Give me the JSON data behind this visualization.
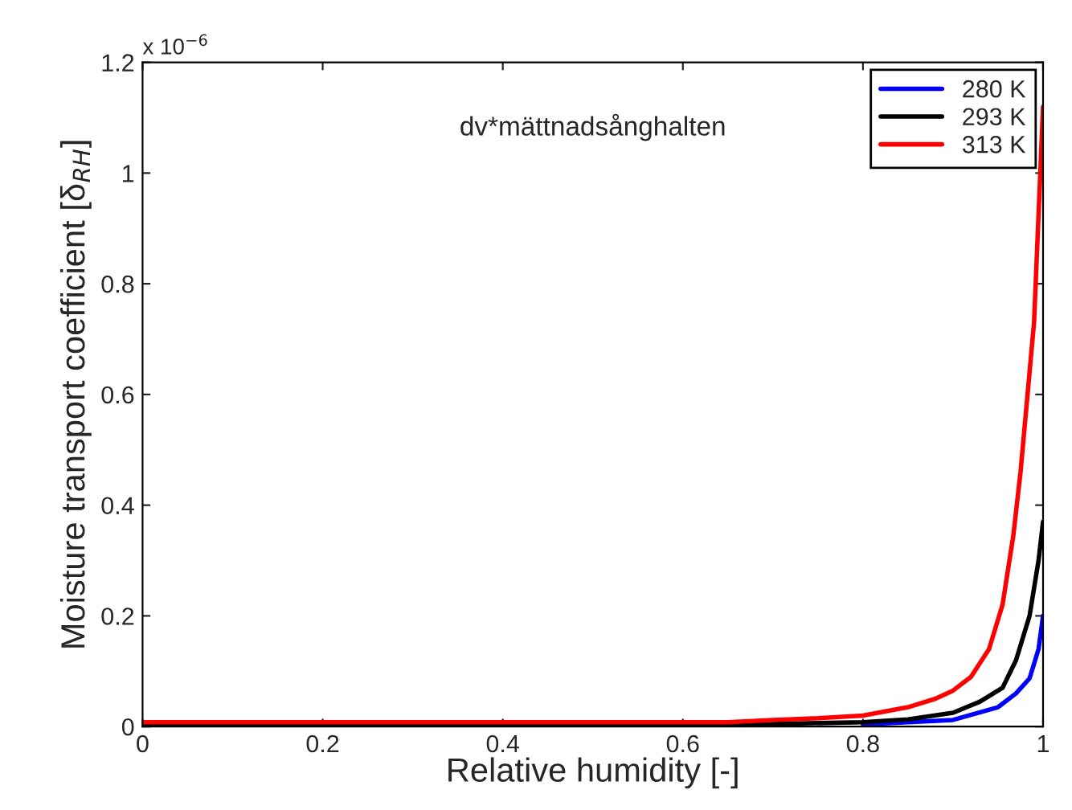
{
  "chart_data": {
    "type": "line",
    "xlabel": "Relative humidity [-]",
    "ylabel": "Moisture transport coefficient [δ$_{RH}$]",
    "annotations": [
      "dv*mättnadsånghalten",
      "x 10$^{−6}$"
    ],
    "xlim": [
      0,
      1
    ],
    "xticks": [
      0,
      0.2,
      0.4,
      0.6,
      0.8,
      1
    ],
    "ylim": [
      0,
      1.2
    ],
    "yticks": [
      0,
      0.2,
      0.4,
      0.6,
      0.8,
      1,
      1.2
    ],
    "grid": false,
    "legend": "top right",
    "line_style": "solid",
    "marker": "none",
    "series": [
      {
        "name": "280 K",
        "color": "#0000ff",
        "x": [
          0.8,
          0.9,
          0.95,
          0.97,
          0.985,
          0.995,
          1.0
        ],
        "values": [
          0.004,
          0.012,
          0.035,
          0.06,
          0.087,
          0.14,
          0.2
        ]
      },
      {
        "name": "293 K",
        "color": "#000000",
        "x": [
          0,
          0.65,
          0.8,
          0.85,
          0.9,
          0.93,
          0.955,
          0.97,
          0.985,
          0.995,
          1.0
        ],
        "values": [
          0.003,
          0.003,
          0.008,
          0.013,
          0.025,
          0.045,
          0.07,
          0.12,
          0.2,
          0.3,
          0.37
        ]
      },
      {
        "name": "313 K",
        "color": "#ff0000",
        "x": [
          0,
          0.65,
          0.7,
          0.75,
          0.8,
          0.85,
          0.88,
          0.9,
          0.92,
          0.94,
          0.955,
          0.967,
          0.975,
          0.99,
          1.0
        ],
        "values": [
          0.008,
          0.008,
          0.012,
          0.015,
          0.02,
          0.035,
          0.05,
          0.065,
          0.09,
          0.14,
          0.22,
          0.345,
          0.46,
          0.73,
          1.12
        ]
      }
    ]
  }
}
